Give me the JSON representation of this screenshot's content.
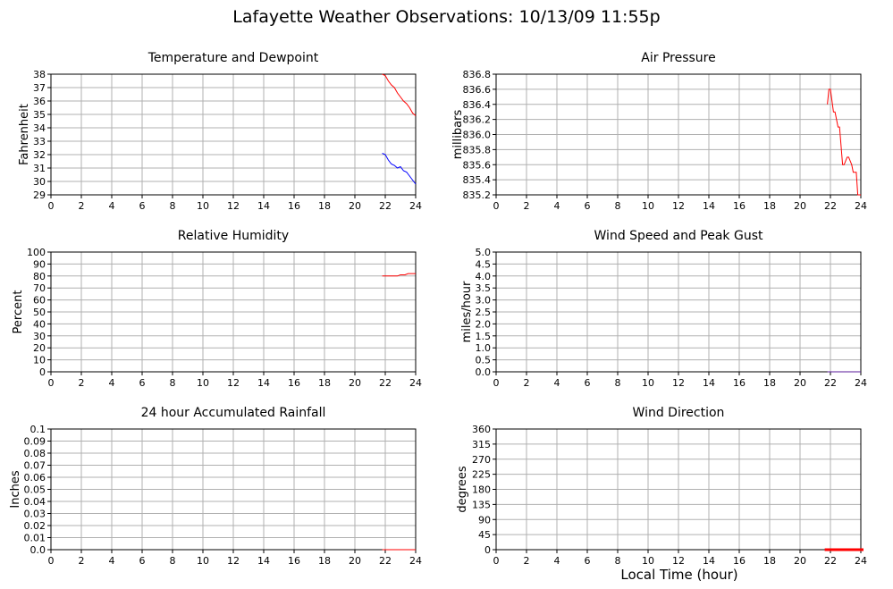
{
  "page": {
    "title": "Lafayette Weather Observations: 10/13/09 11:55p",
    "xaxis_caption": "Local Time (hour)"
  },
  "colors": {
    "grid": "#b0b0b0",
    "frame": "#000000",
    "red": "#ff0000",
    "blue": "#0000ff",
    "purple": "#5a1a9a"
  },
  "chart_data": [
    {
      "id": "temperature",
      "type": "line",
      "title": "Temperature and Dewpoint",
      "xlabel": "",
      "ylabel": "Fahrenheit",
      "xlim": [
        0,
        24
      ],
      "ylim": [
        29,
        38
      ],
      "grid": true,
      "x_ticks": [
        0,
        2,
        4,
        6,
        8,
        10,
        12,
        14,
        16,
        18,
        20,
        22,
        24
      ],
      "y_ticks": [
        "29",
        "30",
        "31",
        "32",
        "33",
        "34",
        "35",
        "36",
        "37",
        "38"
      ],
      "series": [
        {
          "color": "#ff0000",
          "x": [
            21.8,
            22.0,
            22.2,
            22.4,
            22.6,
            22.8,
            23.0,
            23.2,
            23.4,
            23.6,
            23.8,
            24.0
          ],
          "y": [
            38.0,
            37.9,
            37.5,
            37.2,
            37.0,
            36.6,
            36.3,
            36.0,
            35.8,
            35.5,
            35.1,
            34.9
          ]
        },
        {
          "color": "#0000ff",
          "x": [
            21.8,
            22.0,
            22.2,
            22.4,
            22.6,
            22.8,
            23.0,
            23.2,
            23.4,
            23.6,
            23.8,
            24.0
          ],
          "y": [
            32.1,
            32.0,
            31.6,
            31.3,
            31.2,
            31.0,
            31.1,
            30.8,
            30.7,
            30.4,
            30.1,
            29.8
          ]
        }
      ]
    },
    {
      "id": "pressure",
      "type": "line",
      "title": "Air Pressure",
      "xlabel": "",
      "ylabel": "millibars",
      "xlim": [
        0,
        24
      ],
      "ylim": [
        835.2,
        836.8
      ],
      "grid": true,
      "x_ticks": [
        0,
        2,
        4,
        6,
        8,
        10,
        12,
        14,
        16,
        18,
        20,
        22,
        24
      ],
      "y_ticks": [
        "835.2",
        "835.4",
        "835.6",
        "835.8",
        "836.0",
        "836.2",
        "836.4",
        "836.6",
        "836.8"
      ],
      "series": [
        {
          "color": "#ff0000",
          "x": [
            21.8,
            21.9,
            22.0,
            22.2,
            22.3,
            22.5,
            22.6,
            22.8,
            22.9,
            23.1,
            23.2,
            23.4,
            23.5,
            23.7,
            23.8,
            24.0
          ],
          "y": [
            836.4,
            836.6,
            836.6,
            836.3,
            836.3,
            836.1,
            836.1,
            835.6,
            835.6,
            835.7,
            835.7,
            835.6,
            835.5,
            835.5,
            835.2,
            835.2
          ]
        }
      ]
    },
    {
      "id": "humidity",
      "type": "line",
      "title": "Relative Humidity",
      "xlabel": "",
      "ylabel": "Percent",
      "xlim": [
        0,
        24
      ],
      "ylim": [
        0,
        100
      ],
      "grid": true,
      "x_ticks": [
        0,
        2,
        4,
        6,
        8,
        10,
        12,
        14,
        16,
        18,
        20,
        22,
        24
      ],
      "y_ticks": [
        "0",
        "10",
        "20",
        "30",
        "40",
        "50",
        "60",
        "70",
        "80",
        "90",
        "100"
      ],
      "series": [
        {
          "color": "#ff0000",
          "x": [
            21.8,
            22.5,
            22.8,
            23.0,
            23.3,
            23.5,
            24.0
          ],
          "y": [
            80,
            80,
            80,
            81,
            81,
            82,
            82
          ]
        }
      ]
    },
    {
      "id": "wind",
      "type": "line",
      "title": "Wind Speed and Peak Gust",
      "xlabel": "",
      "ylabel": "miles/hour",
      "xlim": [
        0,
        24
      ],
      "ylim": [
        0,
        5
      ],
      "grid": true,
      "x_ticks": [
        0,
        2,
        4,
        6,
        8,
        10,
        12,
        14,
        16,
        18,
        20,
        22,
        24
      ],
      "y_ticks": [
        "0.0",
        "0.5",
        "1.0",
        "1.5",
        "2.0",
        "2.5",
        "3.0",
        "3.5",
        "4.0",
        "4.5",
        "5.0"
      ],
      "series": [
        {
          "color": "#5a1a9a",
          "x": [
            21.8,
            24.0
          ],
          "y": [
            0,
            0
          ]
        }
      ]
    },
    {
      "id": "rainfall",
      "type": "line",
      "title": "24 hour Accumulated Rainfall",
      "xlabel": "",
      "ylabel": "Inches",
      "xlim": [
        0,
        24
      ],
      "ylim": [
        0,
        0.1
      ],
      "grid": true,
      "x_ticks": [
        0,
        2,
        4,
        6,
        8,
        10,
        12,
        14,
        16,
        18,
        20,
        22,
        24
      ],
      "y_ticks": [
        "0.0",
        "0.01",
        "0.02",
        "0.03",
        "0.04",
        "0.05",
        "0.06",
        "0.07",
        "0.08",
        "0.09",
        "0.1"
      ],
      "series": [
        {
          "color": "#ff0000",
          "x": [
            21.8,
            24.0
          ],
          "y": [
            0,
            0
          ]
        }
      ]
    },
    {
      "id": "direction",
      "type": "scatter",
      "title": "Wind Direction",
      "xlabel": "Local Time (hour)",
      "ylabel": "degrees",
      "xlim": [
        0,
        24
      ],
      "ylim": [
        0,
        360
      ],
      "grid": true,
      "x_ticks": [
        0,
        2,
        4,
        6,
        8,
        10,
        12,
        14,
        16,
        18,
        20,
        22,
        24
      ],
      "y_ticks": [
        "0",
        "45",
        "90",
        "135",
        "180",
        "225",
        "270",
        "315",
        "360"
      ],
      "series": [
        {
          "color": "#ff0000",
          "x": [
            21.8,
            22.0,
            22.2,
            22.4,
            22.6,
            22.8,
            23.0,
            23.2,
            23.4,
            23.6,
            23.8,
            24.0
          ],
          "y": [
            0,
            0,
            0,
            0,
            0,
            0,
            0,
            0,
            0,
            0,
            0,
            0
          ]
        }
      ]
    }
  ]
}
